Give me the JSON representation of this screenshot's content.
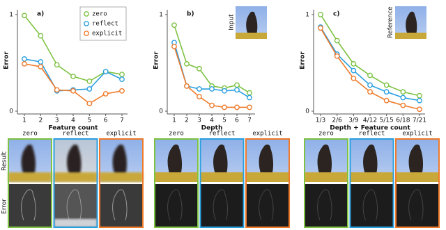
{
  "chart_data": [
    {
      "type": "line",
      "title": "a)",
      "x_label": "Feature count",
      "y_label": "Error",
      "categories": [
        "1",
        "2",
        "3",
        "4",
        "5",
        "6",
        "7"
      ],
      "ylim": [
        0,
        1.05
      ],
      "yticks": [
        0,
        1
      ],
      "legend": "top-right",
      "series": [
        {
          "name": "zero",
          "color": "#7dc242",
          "values": [
            0.99,
            0.78,
            0.48,
            0.36,
            0.31,
            0.41,
            0.38
          ]
        },
        {
          "name": "reflect",
          "color": "#2a9fe0",
          "values": [
            0.54,
            0.51,
            0.21,
            0.22,
            0.23,
            0.41,
            0.33
          ]
        },
        {
          "name": "explicit",
          "color": "#f07a2a",
          "values": [
            0.49,
            0.46,
            0.22,
            0.21,
            0.08,
            0.18,
            0.21
          ]
        }
      ]
    },
    {
      "type": "line",
      "title": "b)",
      "x_label": "Depth",
      "y_label": "Error",
      "categories": [
        "1",
        "2",
        "3",
        "4",
        "5",
        "6",
        "7"
      ],
      "ylim": [
        0,
        1.05
      ],
      "yticks": [
        0,
        1
      ],
      "series": [
        {
          "color": "#7dc242",
          "values": [
            0.89,
            0.49,
            0.44,
            0.26,
            0.24,
            0.27,
            0.19
          ]
        },
        {
          "color": "#2a9fe0",
          "values": [
            0.71,
            0.26,
            0.23,
            0.23,
            0.21,
            0.22,
            0.14
          ]
        },
        {
          "color": "#f07a2a",
          "values": [
            0.67,
            0.26,
            0.15,
            0.06,
            0.04,
            0.04,
            0.04
          ]
        }
      ]
    },
    {
      "type": "line",
      "title": "c)",
      "x_label": "Depth + Feature count",
      "y_label": "Error",
      "categories": [
        "1/3",
        "2/6",
        "3/9",
        "4/12",
        "5/15",
        "6/18",
        "7/21"
      ],
      "ylim": [
        0,
        1.05
      ],
      "yticks": [
        0,
        1
      ],
      "series": [
        {
          "color": "#7dc242",
          "values": [
            1.0,
            0.73,
            0.49,
            0.37,
            0.27,
            0.2,
            0.16
          ]
        },
        {
          "color": "#2a9fe0",
          "values": [
            0.87,
            0.59,
            0.42,
            0.27,
            0.2,
            0.14,
            0.11
          ]
        },
        {
          "color": "#f07a2a",
          "values": [
            0.86,
            0.57,
            0.34,
            0.2,
            0.11,
            0.06,
            0.02
          ]
        }
      ]
    }
  ],
  "images": {
    "input_label": "Input",
    "reference_label": "Reference",
    "row_labels": [
      "Result",
      "Error"
    ],
    "groups": [
      {
        "columns": [
          "zero",
          "reflect",
          "explicit"
        ]
      },
      {
        "columns": [
          "zero",
          "reflect",
          "explicit"
        ]
      },
      {
        "columns": [
          "zero",
          "reflect",
          "explicit"
        ]
      }
    ]
  }
}
